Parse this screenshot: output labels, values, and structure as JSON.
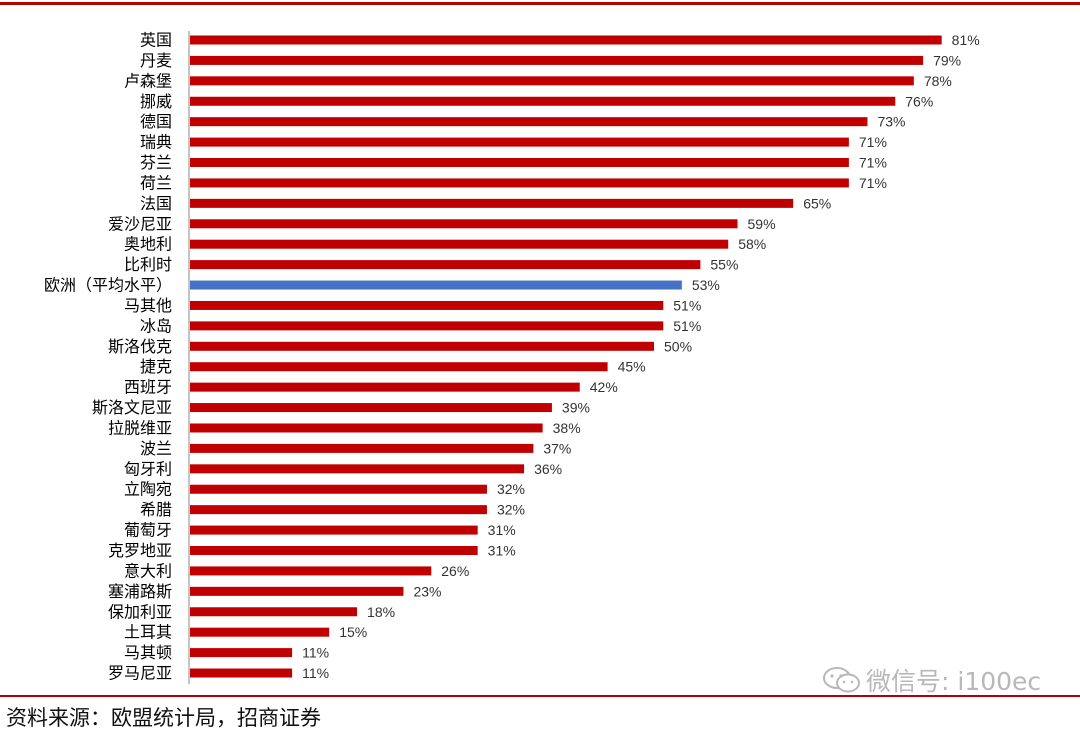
{
  "chart_data": {
    "type": "bar",
    "orientation": "horizontal",
    "title": "",
    "xlabel": "",
    "ylabel": "",
    "xlim": [
      0,
      100
    ],
    "grid": false,
    "value_format": "percent",
    "categories": [
      "英国",
      "丹麦",
      "卢森堡",
      "挪威",
      "德国",
      "瑞典",
      "芬兰",
      "荷兰",
      "法国",
      "爱沙尼亚",
      "奥地利",
      "比利时",
      "欧洲（平均水平）",
      "马其他",
      "冰岛",
      "斯洛伐克",
      "捷克",
      "西班牙",
      "斯洛文尼亚",
      "拉脱维亚",
      "波兰",
      "匈牙利",
      "立陶宛",
      "希腊",
      "葡萄牙",
      "克罗地亚",
      "意大利",
      "塞浦路斯",
      "保加利亚",
      "土耳其",
      "马其顿",
      "罗马尼亚"
    ],
    "values": [
      81,
      79,
      78,
      76,
      73,
      71,
      71,
      71,
      65,
      59,
      58,
      55,
      53,
      51,
      51,
      50,
      45,
      42,
      39,
      38,
      37,
      36,
      32,
      32,
      31,
      31,
      26,
      23,
      18,
      15,
      11,
      11
    ],
    "value_labels": [
      "81%",
      "79%",
      "78%",
      "76%",
      "73%",
      "71%",
      "71%",
      "71%",
      "65%",
      "59%",
      "58%",
      "55%",
      "53%",
      "51%",
      "51%",
      "50%",
      "45%",
      "42%",
      "39%",
      "38%",
      "37%",
      "36%",
      "32%",
      "32%",
      "31%",
      "31%",
      "26%",
      "23%",
      "18%",
      "15%",
      "11%",
      "11%"
    ],
    "highlight_category": "欧洲（平均水平）",
    "colors": {
      "bar": "#c00000",
      "highlight": "#4472c4",
      "axis": "#888888"
    }
  },
  "footer": {
    "source": "资料来源：欧盟统计局，招商证券"
  },
  "watermark": {
    "text": "微信号: i100ec",
    "icon": "wechat-icon"
  },
  "colors": {
    "rule": "#b40000",
    "watermark": "#b8b8b8"
  }
}
